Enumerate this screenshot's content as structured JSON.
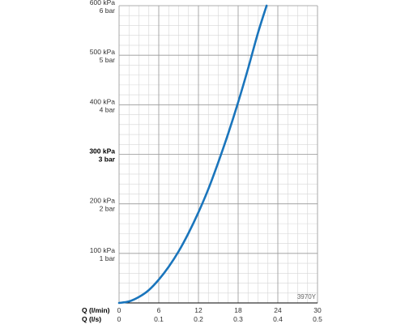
{
  "chart_data": {
    "type": "line",
    "x_primary": {
      "label": "Q (l/min)",
      "ticks": [
        "0",
        "6",
        "12",
        "18",
        "24",
        "30"
      ],
      "range": [
        0,
        30
      ]
    },
    "x_secondary": {
      "label": "Q (l/s)",
      "ticks": [
        "0",
        "0.1",
        "0.2",
        "0.3",
        "0.4",
        "0.5"
      ],
      "range": [
        0,
        0.5
      ]
    },
    "y": {
      "range": [
        0,
        600
      ],
      "unit": "kPa",
      "ticks": [
        {
          "value": 100,
          "kpa": "100 kPa",
          "bar": "1 bar",
          "bold": false
        },
        {
          "value": 200,
          "kpa": "200 kPa",
          "bar": "2 bar",
          "bold": false
        },
        {
          "value": 300,
          "kpa": "300 kPa",
          "bar": "3 bar",
          "bold": true
        },
        {
          "value": 400,
          "kpa": "400 kPa",
          "bar": "4 bar",
          "bold": false
        },
        {
          "value": 500,
          "kpa": "500 kPa",
          "bar": "5 bar",
          "bold": false
        },
        {
          "value": 600,
          "kpa": "600 kPa",
          "bar": "6 bar",
          "bold": false
        }
      ]
    },
    "grid": true,
    "line_color": "#1a75bc",
    "series": [
      {
        "x": [
          0,
          1.5,
          3,
          4.5,
          6,
          7.5,
          9,
          10.5,
          12,
          13.5,
          15,
          16.5,
          18,
          19.5,
          21,
          22.3
        ],
        "y": [
          0,
          3,
          12,
          26,
          47,
          73,
          104,
          141,
          183,
          230,
          284,
          342,
          405,
          473,
          545,
          600
        ]
      }
    ],
    "code": "3970Y"
  }
}
